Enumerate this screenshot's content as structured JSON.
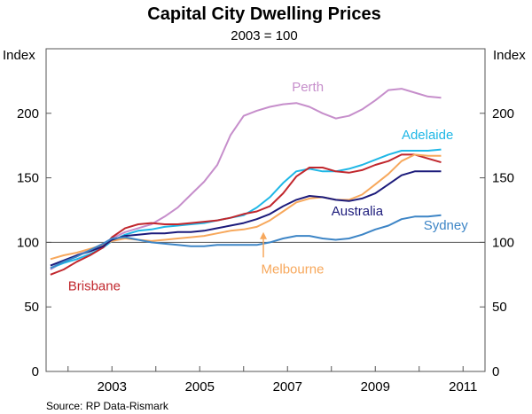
{
  "chart_data": {
    "type": "line",
    "title": "Capital City Dwelling Prices",
    "subtitle": "2003 = 100",
    "ylabel_left": "Index",
    "ylabel_right": "Index",
    "source": "Source: RP Data-Rismark",
    "xlim": [
      2001.5,
      2011.5
    ],
    "ylim": [
      0,
      250
    ],
    "x_ticks": [
      2003,
      2005,
      2007,
      2009,
      2011
    ],
    "y_ticks": [
      0,
      50,
      100,
      150,
      200
    ],
    "reference_line": 100,
    "series": [
      {
        "name": "Perth",
        "color": "#c68ecb",
        "x": [
          2001.6,
          2001.9,
          2002.2,
          2002.5,
          2002.8,
          2003.0,
          2003.3,
          2003.6,
          2003.9,
          2004.2,
          2004.5,
          2004.8,
          2005.1,
          2005.4,
          2005.7,
          2006.0,
          2006.3,
          2006.6,
          2006.9,
          2007.2,
          2007.5,
          2007.8,
          2008.1,
          2008.4,
          2008.7,
          2009.0,
          2009.3,
          2009.6,
          2009.9,
          2010.2,
          2010.5
        ],
        "values": [
          79,
          85,
          90,
          94,
          99,
          103,
          108,
          111,
          114,
          120,
          127,
          137,
          147,
          160,
          183,
          198,
          202,
          205,
          207,
          208,
          205,
          200,
          196,
          198,
          203,
          210,
          218,
          219,
          216,
          213,
          212
        ]
      },
      {
        "name": "Adelaide",
        "color": "#1fb7e6",
        "x": [
          2001.6,
          2001.9,
          2002.2,
          2002.5,
          2002.8,
          2003.0,
          2003.3,
          2003.6,
          2003.9,
          2004.2,
          2004.5,
          2004.8,
          2005.1,
          2005.4,
          2005.7,
          2006.0,
          2006.3,
          2006.6,
          2006.9,
          2007.2,
          2007.5,
          2007.8,
          2008.1,
          2008.4,
          2008.7,
          2009.0,
          2009.3,
          2009.6,
          2009.9,
          2010.2,
          2010.5
        ],
        "values": [
          80,
          84,
          87,
          91,
          96,
          101,
          106,
          109,
          110,
          112,
          113,
          114,
          115,
          117,
          119,
          121,
          127,
          135,
          146,
          155,
          157,
          155,
          155,
          157,
          160,
          164,
          168,
          171,
          171,
          171,
          172
        ]
      },
      {
        "name": "Brisbane",
        "color": "#c1272d",
        "x": [
          2001.6,
          2001.9,
          2002.2,
          2002.5,
          2002.8,
          2003.0,
          2003.3,
          2003.6,
          2003.9,
          2004.2,
          2004.5,
          2004.8,
          2005.1,
          2005.4,
          2005.7,
          2006.0,
          2006.3,
          2006.6,
          2006.9,
          2007.2,
          2007.5,
          2007.8,
          2008.1,
          2008.4,
          2008.7,
          2009.0,
          2009.3,
          2009.6,
          2009.9,
          2010.2,
          2010.5
        ],
        "values": [
          75,
          79,
          85,
          90,
          96,
          104,
          111,
          114,
          115,
          114,
          114,
          115,
          116,
          117,
          119,
          122,
          124,
          128,
          138,
          151,
          158,
          158,
          155,
          154,
          156,
          160,
          163,
          168,
          168,
          165,
          162
        ]
      },
      {
        "name": "Melbourne",
        "color": "#f7a85c",
        "x": [
          2001.6,
          2001.9,
          2002.2,
          2002.5,
          2002.8,
          2003.0,
          2003.3,
          2003.6,
          2003.9,
          2004.2,
          2004.5,
          2004.8,
          2005.1,
          2005.4,
          2005.7,
          2006.0,
          2006.3,
          2006.6,
          2006.9,
          2007.2,
          2007.5,
          2007.8,
          2008.1,
          2008.4,
          2008.7,
          2009.0,
          2009.3,
          2009.6,
          2009.9,
          2010.2,
          2010.5
        ],
        "values": [
          87,
          90,
          92,
          95,
          98,
          101,
          103,
          102,
          101,
          102,
          103,
          104,
          105,
          107,
          109,
          110,
          112,
          117,
          124,
          131,
          134,
          135,
          133,
          133,
          137,
          145,
          153,
          163,
          168,
          167,
          167
        ]
      },
      {
        "name": "Australia",
        "color": "#1c1b7b",
        "x": [
          2001.6,
          2001.9,
          2002.2,
          2002.5,
          2002.8,
          2003.0,
          2003.3,
          2003.6,
          2003.9,
          2004.2,
          2004.5,
          2004.8,
          2005.1,
          2005.4,
          2005.7,
          2006.0,
          2006.3,
          2006.6,
          2006.9,
          2007.2,
          2007.5,
          2007.8,
          2008.1,
          2008.4,
          2008.7,
          2009.0,
          2009.3,
          2009.6,
          2009.9,
          2010.2,
          2010.5
        ],
        "values": [
          82,
          86,
          90,
          93,
          97,
          102,
          105,
          106,
          107,
          107,
          108,
          108,
          109,
          111,
          113,
          115,
          118,
          122,
          128,
          133,
          136,
          135,
          133,
          132,
          134,
          138,
          145,
          152,
          155,
          155,
          155
        ]
      },
      {
        "name": "Sydney",
        "color": "#3d85c6",
        "x": [
          2001.6,
          2001.9,
          2002.2,
          2002.5,
          2002.8,
          2003.0,
          2003.3,
          2003.6,
          2003.9,
          2004.2,
          2004.5,
          2004.8,
          2005.1,
          2005.4,
          2005.7,
          2006.0,
          2006.3,
          2006.6,
          2006.9,
          2007.2,
          2007.5,
          2007.8,
          2008.1,
          2008.4,
          2008.7,
          2009.0,
          2009.3,
          2009.6,
          2009.9,
          2010.2,
          2010.5
        ],
        "values": [
          80,
          85,
          89,
          94,
          99,
          103,
          104,
          102,
          100,
          99,
          98,
          97,
          97,
          98,
          98,
          98,
          98,
          100,
          103,
          105,
          105,
          103,
          102,
          103,
          106,
          110,
          113,
          118,
          120,
          120,
          121
        ]
      }
    ],
    "annotations": [
      {
        "series": "Perth",
        "text": "Perth",
        "x": 2007.1,
        "y": 217
      },
      {
        "series": "Adelaide",
        "text": "Adelaide",
        "x": 2009.6,
        "y": 180
      },
      {
        "series": "Australia",
        "text": "Australia",
        "x": 2008.0,
        "y": 121
      },
      {
        "series": "Sydney",
        "text": "Sydney",
        "x": 2010.1,
        "y": 110
      },
      {
        "series": "Melbourne",
        "text": "Melbourne",
        "x": 2006.4,
        "y": 76,
        "arrow_to": {
          "x": 2006.45,
          "y": 108
        }
      },
      {
        "series": "Brisbane",
        "text": "Brisbane",
        "x": 2002.0,
        "y": 63
      }
    ]
  }
}
